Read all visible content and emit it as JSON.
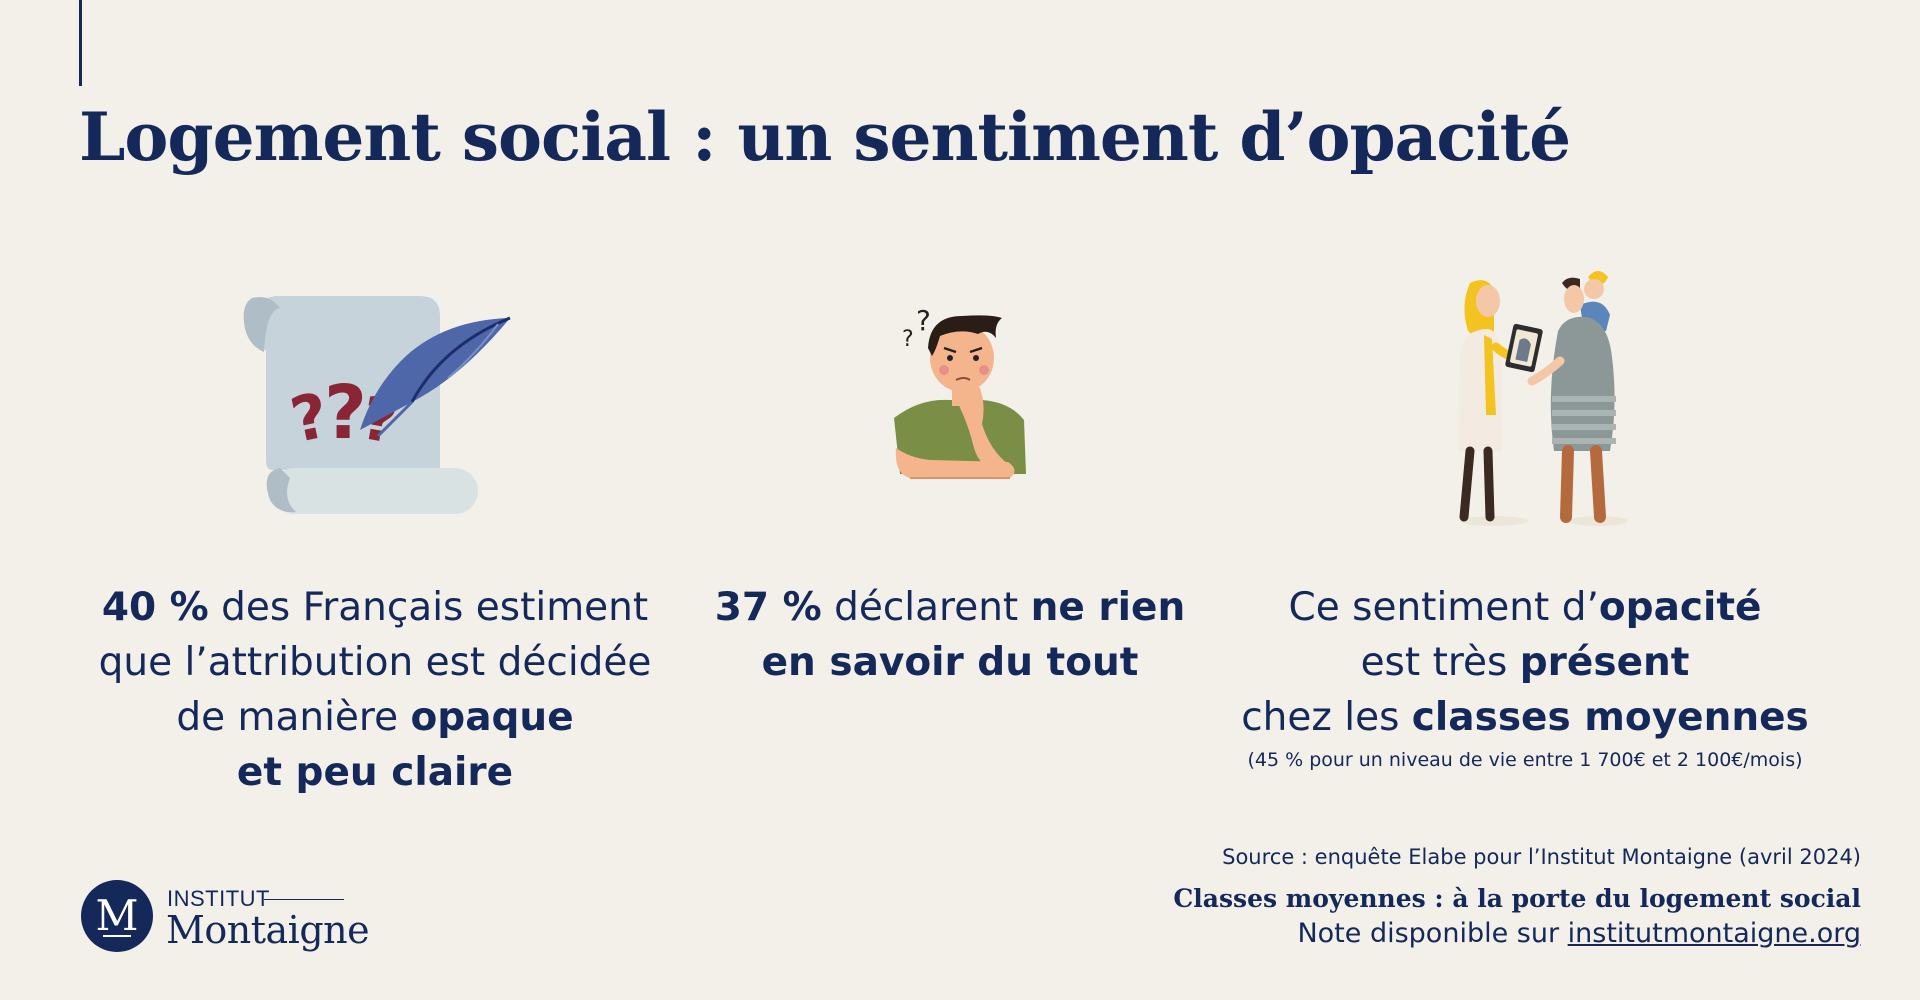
{
  "title": "Logement social : un sentiment d’opacité",
  "stats": [
    {
      "line1_bold": "40 %",
      "line1_rest": " des Français estiment",
      "line2": "que l’attribution est décidée",
      "line3_pre": "de manière ",
      "line3_bold": "opaque",
      "line4_bold": "et peu claire"
    },
    {
      "line1_bold": "37 %",
      "line1_mid": " déclarent ",
      "line1_bold2": "ne rien",
      "line2_bold": "en savoir du tout"
    },
    {
      "line1_pre": "Ce sentiment d’",
      "line1_bold": "opacité",
      "line2_pre": "est très ",
      "line2_bold": "présent",
      "line3_pre": "chez les ",
      "line3_bold": "classes moyennes",
      "note": "(45 % pour un niveau de vie entre 1 700€ et 2 100€/mois)"
    }
  ],
  "illustrations": {
    "scroll": "scroll-with-question-marks-icon",
    "thinker": "thinking-person-icon",
    "people": "people-with-tablet-icon"
  },
  "logo": {
    "letter": "M",
    "line1": "INSTITUT",
    "line2": "Montaigne"
  },
  "footer": {
    "source": "Source : enquête Elabe pour l’Institut Montaigne (avril 2024)",
    "publication": "Classes moyennes : à la porte du logement social",
    "available_prefix": "Note disponible sur ",
    "link_text": "institutmontaigne.org"
  },
  "colors": {
    "background": "#f3f0ea",
    "navy": "#14285a",
    "question_marks": "#8a2535",
    "feather": "#4e67a8"
  }
}
